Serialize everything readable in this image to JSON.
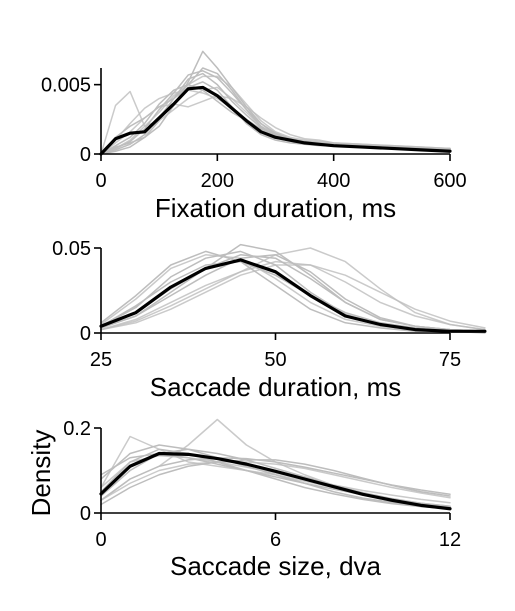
{
  "chart_data": [
    {
      "type": "line",
      "xlabel": "Fixation duration, ms",
      "ylabel": "",
      "xlim": [
        0,
        600
      ],
      "ylim": [
        0,
        0.0062
      ],
      "xticks": [
        0,
        200,
        400,
        600
      ],
      "xtick_labels": [
        "0",
        "200",
        "400",
        "600"
      ],
      "yticks": [
        0,
        0.005
      ],
      "ytick_labels": [
        "0",
        "0.005"
      ],
      "grid": false,
      "subject_color": "#bdbdbd",
      "mean_color": "#000000",
      "x": [
        0,
        25,
        50,
        75,
        100,
        125,
        150,
        175,
        200,
        225,
        250,
        275,
        300,
        325,
        350,
        375,
        400,
        450,
        500,
        550,
        600
      ],
      "subjects": [
        [
          0,
          0.0035,
          0.0045,
          0.002,
          0.0024,
          0.0032,
          0.004,
          0.0046,
          0.0048,
          0.004,
          0.003,
          0.002,
          0.0014,
          0.001,
          0.0008,
          0.0007,
          0.0006,
          0.0005,
          0.0004,
          0.0003,
          0.0003
        ],
        [
          0,
          0.0005,
          0.0008,
          0.0012,
          0.002,
          0.0035,
          0.0052,
          0.0074,
          0.0062,
          0.0048,
          0.0034,
          0.0022,
          0.0014,
          0.001,
          0.0008,
          0.0007,
          0.0006,
          0.0005,
          0.0004,
          0.0004,
          0.0003
        ],
        [
          0,
          0.0004,
          0.0009,
          0.0018,
          0.0032,
          0.0044,
          0.0057,
          0.006,
          0.0055,
          0.0044,
          0.0032,
          0.0022,
          0.0015,
          0.0011,
          0.0009,
          0.0008,
          0.0007,
          0.0005,
          0.0004,
          0.0004,
          0.0003
        ],
        [
          0,
          0.001,
          0.0022,
          0.0033,
          0.004,
          0.0044,
          0.0046,
          0.0044,
          0.004,
          0.0033,
          0.0025,
          0.0018,
          0.0013,
          0.001,
          0.0008,
          0.0007,
          0.0006,
          0.0005,
          0.0004,
          0.0004,
          0.0003
        ],
        [
          0,
          0.0002,
          0.0005,
          0.0012,
          0.0024,
          0.004,
          0.0054,
          0.0058,
          0.005,
          0.0038,
          0.0028,
          0.0019,
          0.0014,
          0.0011,
          0.0009,
          0.0008,
          0.0007,
          0.0006,
          0.0005,
          0.0004,
          0.0004
        ],
        [
          0,
          0.0006,
          0.0012,
          0.0022,
          0.0036,
          0.0046,
          0.005,
          0.0046,
          0.0038,
          0.003,
          0.0024,
          0.0018,
          0.0014,
          0.0011,
          0.0009,
          0.0008,
          0.0007,
          0.0006,
          0.0005,
          0.0004,
          0.0004
        ],
        [
          0,
          0.0008,
          0.0016,
          0.0026,
          0.0034,
          0.0036,
          0.0034,
          0.0038,
          0.0042,
          0.004,
          0.0034,
          0.0026,
          0.0019,
          0.0014,
          0.0011,
          0.001,
          0.0008,
          0.0007,
          0.0006,
          0.0005,
          0.0004
        ],
        [
          0,
          0.0003,
          0.0007,
          0.0014,
          0.0026,
          0.004,
          0.005,
          0.0062,
          0.0058,
          0.0046,
          0.0032,
          0.002,
          0.0013,
          0.001,
          0.0008,
          0.0007,
          0.0006,
          0.0005,
          0.0004,
          0.0003,
          0.0003
        ],
        [
          0,
          0.0012,
          0.002,
          0.0026,
          0.0034,
          0.004,
          0.0048,
          0.0052,
          0.0046,
          0.0034,
          0.0022,
          0.0014,
          0.001,
          0.0008,
          0.0007,
          0.0006,
          0.0006,
          0.0005,
          0.0004,
          0.0003,
          0.0003
        ],
        [
          0,
          0.0004,
          0.001,
          0.002,
          0.003,
          0.0042,
          0.005,
          0.0056,
          0.0056,
          0.0048,
          0.0036,
          0.0024,
          0.0016,
          0.0012,
          0.001,
          0.0009,
          0.0008,
          0.0007,
          0.0006,
          0.0005,
          0.0004
        ]
      ],
      "mean": [
        0,
        0.0011,
        0.0015,
        0.0016,
        0.0026,
        0.0036,
        0.0047,
        0.0048,
        0.0042,
        0.0033,
        0.0024,
        0.0016,
        0.0012,
        0.001,
        0.0008,
        0.0007,
        0.0006,
        0.0005,
        0.0004,
        0.0003,
        0.0002
      ]
    },
    {
      "type": "line",
      "xlabel": "Saccade duration, ms",
      "ylabel": "",
      "xlim": [
        25,
        75
      ],
      "ylim": [
        0,
        0.05
      ],
      "xticks": [
        25,
        50,
        75
      ],
      "xtick_labels": [
        "25",
        "50",
        "75"
      ],
      "yticks": [
        0,
        0.05
      ],
      "ytick_labels": [
        "0",
        "0.05"
      ],
      "grid": false,
      "subject_color": "#bdbdbd",
      "mean_color": "#000000",
      "x": [
        25,
        30,
        35,
        40,
        45,
        50,
        55,
        60,
        65,
        70,
        75,
        80
      ],
      "subjects": [
        [
          0.005,
          0.02,
          0.038,
          0.046,
          0.044,
          0.032,
          0.018,
          0.008,
          0.004,
          0.002,
          0.001,
          0.001
        ],
        [
          0.003,
          0.01,
          0.022,
          0.034,
          0.044,
          0.046,
          0.036,
          0.02,
          0.009,
          0.004,
          0.002,
          0.001
        ],
        [
          0.004,
          0.015,
          0.033,
          0.044,
          0.048,
          0.04,
          0.024,
          0.011,
          0.005,
          0.002,
          0.001,
          0.001
        ],
        [
          0.002,
          0.008,
          0.018,
          0.028,
          0.036,
          0.042,
          0.04,
          0.03,
          0.018,
          0.01,
          0.005,
          0.002
        ],
        [
          0.006,
          0.022,
          0.04,
          0.048,
          0.042,
          0.028,
          0.014,
          0.006,
          0.003,
          0.001,
          0.001,
          0.0
        ],
        [
          0.003,
          0.012,
          0.026,
          0.038,
          0.046,
          0.044,
          0.032,
          0.018,
          0.008,
          0.004,
          0.002,
          0.001
        ],
        [
          0.002,
          0.006,
          0.014,
          0.024,
          0.034,
          0.04,
          0.04,
          0.034,
          0.024,
          0.014,
          0.007,
          0.003
        ],
        [
          0.004,
          0.016,
          0.03,
          0.04,
          0.042,
          0.034,
          0.022,
          0.012,
          0.006,
          0.003,
          0.001,
          0.001
        ],
        [
          0.003,
          0.01,
          0.024,
          0.038,
          0.052,
          0.048,
          0.034,
          0.018,
          0.008,
          0.004,
          0.002,
          0.001
        ],
        [
          0.002,
          0.007,
          0.016,
          0.026,
          0.036,
          0.046,
          0.05,
          0.042,
          0.026,
          0.012,
          0.005,
          0.002
        ]
      ],
      "mean": [
        0.004,
        0.012,
        0.027,
        0.038,
        0.043,
        0.036,
        0.022,
        0.01,
        0.005,
        0.002,
        0.001,
        0.001
      ]
    },
    {
      "type": "line",
      "xlabel": "Saccade size, dva",
      "ylabel": "Density",
      "xlim": [
        0,
        12
      ],
      "ylim": [
        0,
        0.2
      ],
      "xticks": [
        0,
        6,
        12
      ],
      "xtick_labels": [
        "0",
        "6",
        "12"
      ],
      "yticks": [
        0,
        0.2
      ],
      "ytick_labels": [
        "0",
        "0.2"
      ],
      "grid": false,
      "subject_color": "#bdbdbd",
      "mean_color": "#000000",
      "x": [
        0,
        1,
        2,
        3,
        4,
        5,
        6,
        7,
        8,
        9,
        10,
        11,
        12
      ],
      "subjects": [
        [
          0.06,
          0.18,
          0.15,
          0.12,
          0.11,
          0.1,
          0.09,
          0.075,
          0.06,
          0.045,
          0.032,
          0.022,
          0.015
        ],
        [
          0.08,
          0.14,
          0.16,
          0.15,
          0.13,
          0.11,
          0.09,
          0.07,
          0.05,
          0.035,
          0.025,
          0.017,
          0.012
        ],
        [
          0.04,
          0.1,
          0.14,
          0.15,
          0.14,
          0.125,
          0.105,
          0.085,
          0.065,
          0.048,
          0.034,
          0.023,
          0.016
        ],
        [
          0.03,
          0.08,
          0.11,
          0.16,
          0.22,
          0.16,
          0.12,
          0.09,
          0.065,
          0.045,
          0.03,
          0.02,
          0.014
        ],
        [
          0.05,
          0.12,
          0.15,
          0.14,
          0.12,
          0.1,
          0.08,
          0.06,
          0.045,
          0.032,
          0.022,
          0.015,
          0.01
        ],
        [
          0.02,
          0.06,
          0.09,
          0.11,
          0.12,
          0.125,
          0.125,
          0.115,
          0.1,
          0.082,
          0.065,
          0.05,
          0.04
        ],
        [
          0.03,
          0.07,
          0.1,
          0.115,
          0.12,
          0.12,
          0.115,
          0.105,
          0.09,
          0.075,
          0.06,
          0.047,
          0.036
        ],
        [
          0.09,
          0.13,
          0.14,
          0.13,
          0.115,
          0.1,
          0.085,
          0.07,
          0.056,
          0.043,
          0.032,
          0.023,
          0.016
        ],
        [
          0.03,
          0.08,
          0.11,
          0.125,
          0.13,
          0.128,
          0.12,
          0.108,
          0.094,
          0.08,
          0.066,
          0.054,
          0.044
        ],
        [
          0.06,
          0.12,
          0.135,
          0.13,
          0.12,
          0.108,
          0.094,
          0.08,
          0.066,
          0.053,
          0.042,
          0.032,
          0.024
        ]
      ],
      "mean": [
        0.045,
        0.11,
        0.14,
        0.138,
        0.128,
        0.115,
        0.098,
        0.08,
        0.062,
        0.044,
        0.03,
        0.018,
        0.01
      ]
    }
  ]
}
